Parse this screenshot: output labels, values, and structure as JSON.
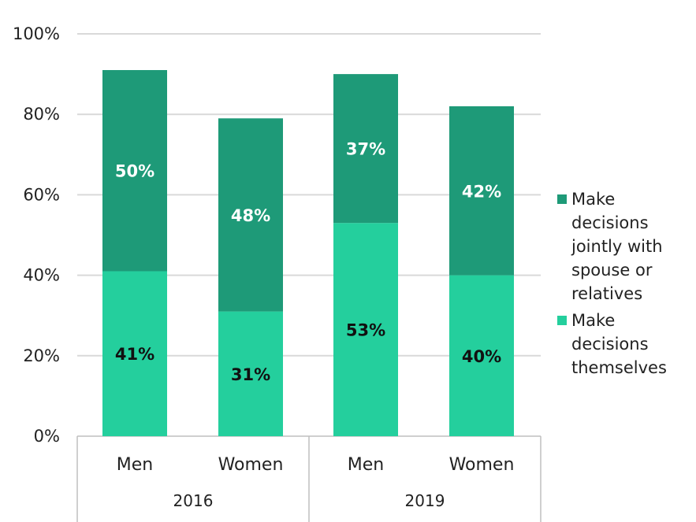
{
  "chart_data": {
    "type": "bar",
    "stacked": true,
    "groups": [
      {
        "label": "2016",
        "categories": [
          "Men",
          "Women"
        ]
      },
      {
        "label": "2019",
        "categories": [
          "Men",
          "Women"
        ]
      }
    ],
    "categories": [
      "Men",
      "Women",
      "Men",
      "Women"
    ],
    "series": [
      {
        "name": "Make decisions themselves",
        "color": "#24CF9D",
        "label_color": "#111111",
        "values": [
          41,
          31,
          53,
          40
        ],
        "labels": [
          "41%",
          "31%",
          "53%",
          "40%"
        ]
      },
      {
        "name": "Make decisions jointly with spouse or relatives",
        "color": "#1E9A78",
        "label_color": "#ffffff",
        "values": [
          50,
          48,
          37,
          42
        ],
        "labels": [
          "50%",
          "48%",
          "37%",
          "42%"
        ]
      }
    ],
    "ylim": [
      0,
      100
    ],
    "yticks": [
      "0%",
      "20%",
      "40%",
      "60%",
      "80%",
      "100%"
    ],
    "grid": true,
    "legend_position": "right"
  }
}
